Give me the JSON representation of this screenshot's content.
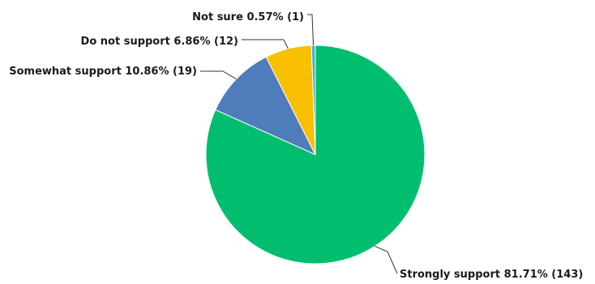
{
  "chart_data": {
    "type": "pie",
    "title": "",
    "slices": [
      {
        "label": "Strongly support",
        "percent": 81.71,
        "count": 143,
        "text": "Strongly support 81.71% (143)",
        "color": "#00be6e"
      },
      {
        "label": "Somewhat support",
        "percent": 10.86,
        "count": 19,
        "text": "Somewhat support 10.86% (19)",
        "color": "#4f7cba"
      },
      {
        "label": "Do not support",
        "percent": 6.86,
        "count": 12,
        "text": "Do not support 6.86% (12)",
        "color": "#f8c000"
      },
      {
        "label": "Not sure",
        "percent": 0.57,
        "count": 1,
        "text": "Not sure 0.57% (1)",
        "color": "#4bb2c8"
      }
    ]
  }
}
